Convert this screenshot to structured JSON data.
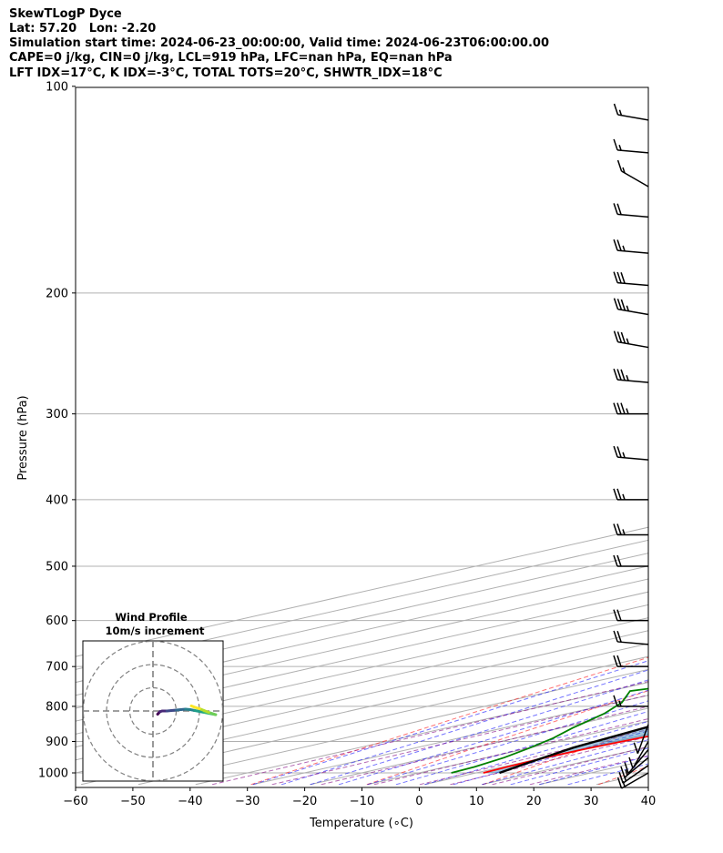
{
  "header": {
    "line1": "SkewTLogP Dyce",
    "line2": "Lat: 57.20   Lon: -2.20",
    "line3": "Simulation start time: 2024-06-23_00:00:00, Valid time: 2024-06-23T06:00:00.00",
    "line4": "CAPE=0 j/kg, CIN=0 j/kg, LCL=919 hPa, LFC=nan hPa, EQ=nan hPa",
    "line5": "LFT IDX=17°C, K IDX=-3°C, TOTAL TOTS=20°C, SHWTR_IDX=18°C"
  },
  "chart_data": {
    "type": "line",
    "title": "SkewTLogP Dyce",
    "xlabel": "Temperature (∘C)",
    "ylabel": "Pressure (hPa)",
    "xlim": [
      -60,
      40
    ],
    "ylim": [
      1040,
      100
    ],
    "y_scale": "log",
    "skew": true,
    "grid": true,
    "x_ticks": [
      -60,
      -50,
      -40,
      -30,
      -20,
      -10,
      0,
      10,
      20,
      30,
      40
    ],
    "x_tick_labels": [
      "−60",
      "−50",
      "−40",
      "−30",
      "−20",
      "−10",
      "0",
      "10",
      "20",
      "30",
      "40"
    ],
    "y_ticks": [
      1000,
      900,
      800,
      700,
      600,
      500,
      400,
      300,
      200,
      100
    ],
    "y_tick_labels": [
      "1000",
      "900",
      "800",
      "700",
      "600",
      "500",
      "400",
      "300",
      "200",
      "100"
    ],
    "series": [
      {
        "name": "temperature",
        "color": "#ff0000",
        "points": [
          [
            1000,
            11.2
          ],
          [
            980,
            10.7
          ],
          [
            950,
            10.2
          ],
          [
            920,
            10.5
          ],
          [
            890,
            11.5
          ],
          [
            860,
            12.7
          ],
          [
            820,
            14.3
          ],
          [
            790,
            15.6
          ],
          [
            760,
            16.1
          ],
          [
            730,
            15.9
          ],
          [
            700,
            14.5
          ],
          [
            650,
            11.6
          ],
          [
            600,
            8.7
          ],
          [
            550,
            5.5
          ],
          [
            500,
            1.4
          ],
          [
            450,
            -3.7
          ],
          [
            400,
            -9.4
          ],
          [
            350,
            -16.1
          ],
          [
            300,
            -23.8
          ],
          [
            260,
            -30.7
          ],
          [
            230,
            -37.3
          ],
          [
            210,
            -42.0
          ],
          [
            200,
            -44.7
          ],
          [
            180,
            -49.3
          ],
          [
            170,
            -51.3
          ],
          [
            160,
            -51.8
          ],
          [
            150,
            -51.0
          ],
          [
            140,
            -50.8
          ],
          [
            130,
            -50.5
          ],
          [
            120,
            -50.0
          ],
          [
            110,
            -48.2
          ],
          [
            104,
            -47.8
          ],
          [
            100,
            -48.1
          ]
        ]
      },
      {
        "name": "dewpoint",
        "color": "#008000",
        "points": [
          [
            1000,
            5.6
          ],
          [
            980,
            5.0
          ],
          [
            950,
            3.0
          ],
          [
            920,
            0.0
          ],
          [
            890,
            -3.5
          ],
          [
            860,
            -8.0
          ],
          [
            820,
            -13.5
          ],
          [
            790,
            -19.0
          ],
          [
            760,
            -26.5
          ],
          [
            720,
            -17.0
          ],
          [
            680,
            -8.0
          ],
          [
            650,
            -3.4
          ],
          [
            600,
            1.7
          ],
          [
            550,
            0.8
          ],
          [
            500,
            -2.8
          ],
          [
            450,
            -8.2
          ],
          [
            400,
            -13.8
          ],
          [
            350,
            -21.3
          ],
          [
            320,
            -25.9
          ],
          [
            300,
            -29.0
          ],
          [
            280,
            -32.7
          ],
          [
            260,
            -37.0
          ],
          [
            240,
            -40.3
          ],
          [
            220,
            -43.9
          ],
          [
            200,
            -48.9
          ],
          [
            180,
            -53.5
          ],
          [
            170,
            -55.5
          ],
          [
            160,
            -59.9
          ],
          [
            150,
            -66.0
          ],
          [
            140,
            -70.6
          ],
          [
            120,
            -69.3
          ],
          [
            110,
            -66.0
          ],
          [
            100,
            -64.1
          ]
        ]
      },
      {
        "name": "parcel profile",
        "color": "#000000",
        "points": [
          [
            1000,
            14.0
          ],
          [
            970,
            11.5
          ],
          [
            940,
            9.1
          ],
          [
            919,
            7.4
          ],
          [
            880,
            5.5
          ],
          [
            850,
            4.0
          ],
          [
            800,
            1.1
          ],
          [
            750,
            -2.2
          ],
          [
            700,
            -5.7
          ],
          [
            650,
            -9.7
          ],
          [
            600,
            -14.2
          ],
          [
            550,
            -19.3
          ],
          [
            500,
            -25.0
          ],
          [
            450,
            -31.6
          ],
          [
            400,
            -39.1
          ],
          [
            350,
            -47.8
          ],
          [
            300,
            -57.9
          ],
          [
            250,
            -69.6
          ],
          [
            200,
            -84.8
          ],
          [
            150,
            -105.9
          ],
          [
            100,
            -142.0
          ]
        ]
      }
    ],
    "dry_adiabats": {
      "color": "#ff0000",
      "style": "dashed"
    },
    "moist_adiabats": {
      "color": "#0000ff",
      "style": "dashed"
    },
    "mixing_lines": {
      "color": "#800080",
      "style": "dashed"
    },
    "cin_shading": {
      "color": "#1f77b4"
    },
    "wind_barbs": [
      {
        "p": 1000,
        "speed_kt": 15,
        "dir_deg": 240
      },
      {
        "p": 975,
        "speed_kt": 15,
        "dir_deg": 235
      },
      {
        "p": 950,
        "speed_kt": 15,
        "dir_deg": 230
      },
      {
        "p": 925,
        "speed_kt": 10,
        "dir_deg": 220
      },
      {
        "p": 900,
        "speed_kt": 10,
        "dir_deg": 210
      },
      {
        "p": 850,
        "speed_kt": 10,
        "dir_deg": 200
      },
      {
        "p": 800,
        "speed_kt": 15,
        "dir_deg": 270
      },
      {
        "p": 700,
        "speed_kt": 20,
        "dir_deg": 270
      },
      {
        "p": 650,
        "speed_kt": 20,
        "dir_deg": 275
      },
      {
        "p": 600,
        "speed_kt": 20,
        "dir_deg": 270
      },
      {
        "p": 500,
        "speed_kt": 20,
        "dir_deg": 270
      },
      {
        "p": 450,
        "speed_kt": 25,
        "dir_deg": 270
      },
      {
        "p": 400,
        "speed_kt": 25,
        "dir_deg": 270
      },
      {
        "p": 350,
        "speed_kt": 25,
        "dir_deg": 275
      },
      {
        "p": 300,
        "speed_kt": 35,
        "dir_deg": 270
      },
      {
        "p": 270,
        "speed_kt": 35,
        "dir_deg": 275
      },
      {
        "p": 240,
        "speed_kt": 35,
        "dir_deg": 280
      },
      {
        "p": 215,
        "speed_kt": 35,
        "dir_deg": 280
      },
      {
        "p": 195,
        "speed_kt": 30,
        "dir_deg": 275
      },
      {
        "p": 175,
        "speed_kt": 25,
        "dir_deg": 275
      },
      {
        "p": 155,
        "speed_kt": 20,
        "dir_deg": 275
      },
      {
        "p": 140,
        "speed_kt": 15,
        "dir_deg": 300
      },
      {
        "p": 125,
        "speed_kt": 15,
        "dir_deg": 275
      },
      {
        "p": 112,
        "speed_kt": 15,
        "dir_deg": 280
      }
    ],
    "hodograph": {
      "title": "Wind Profile",
      "subtitle": "10m/s increment",
      "ring_step_ms": 10,
      "rings": 3,
      "trace_ms": [
        [
          2.0,
          -1.4
        ],
        [
          3.0,
          -0.3
        ],
        [
          4.0,
          0.0
        ],
        [
          6.0,
          0.0
        ],
        [
          8.0,
          0.2
        ],
        [
          10.0,
          0.4
        ],
        [
          12.0,
          0.6
        ],
        [
          14.0,
          0.8
        ],
        [
          16.0,
          0.6
        ],
        [
          18.0,
          0.2
        ],
        [
          20.0,
          -0.2
        ],
        [
          22.0,
          -0.6
        ],
        [
          24.0,
          -1.0
        ],
        [
          26.0,
          -1.4
        ],
        [
          27.0,
          -1.6
        ],
        [
          24.0,
          -0.6
        ],
        [
          22.0,
          0.2
        ],
        [
          20.0,
          1.0
        ],
        [
          18.0,
          1.6
        ],
        [
          16.5,
          2.2
        ]
      ],
      "colormap": "viridis"
    }
  }
}
